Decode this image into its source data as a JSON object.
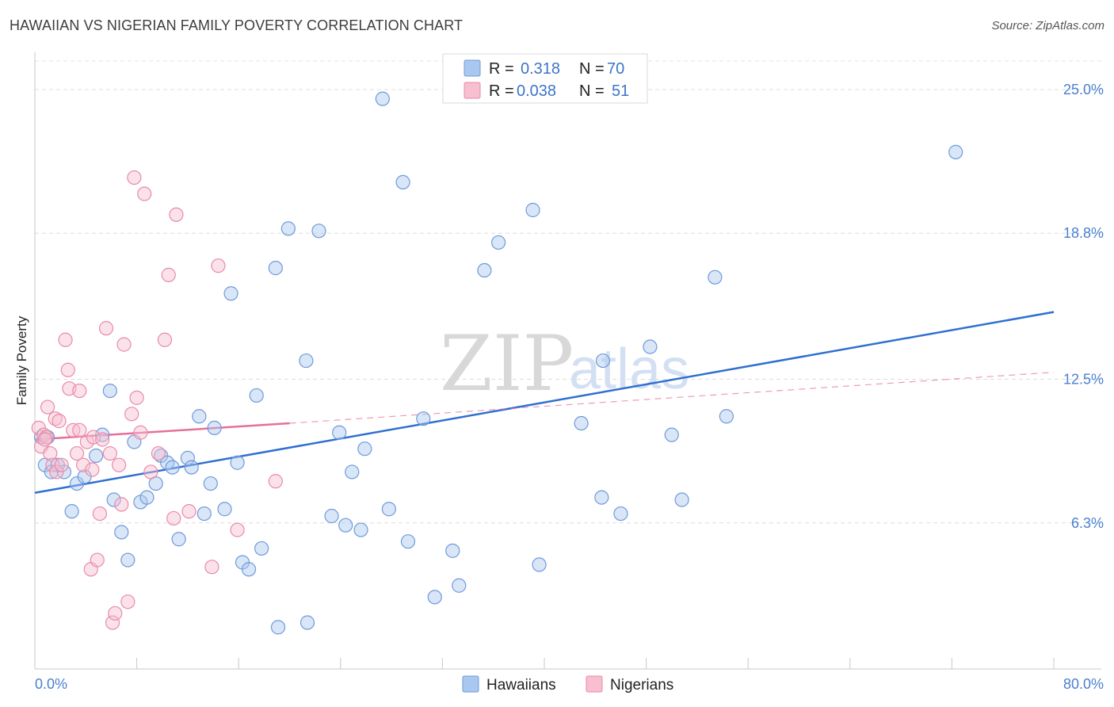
{
  "title": "HAWAIIAN VS NIGERIAN FAMILY POVERTY CORRELATION CHART",
  "source": "Source: ZipAtlas.com",
  "watermark": {
    "zip": "ZIP",
    "atlas": "atlas"
  },
  "legend_top": {
    "rows": [
      {
        "r_label": "R =",
        "r_value": "0.318",
        "n_label": "N =",
        "n_value": "70",
        "color": "#a9c8f0",
        "stroke": "#6f9ad9"
      },
      {
        "r_label": "R =",
        "r_value": "0.038",
        "n_label": "N =",
        "n_value": "51",
        "color": "#f7bfd0",
        "stroke": "#e98aa8"
      }
    ]
  },
  "legend_bottom": [
    {
      "label": "Hawaiians",
      "color": "#a9c8f0",
      "stroke": "#6f9ad9"
    },
    {
      "label": "Nigerians",
      "color": "#f7bfd0",
      "stroke": "#e98aa8"
    }
  ],
  "chart_data": {
    "type": "scatter",
    "ylabel": "Family Poverty",
    "xlim": [
      0,
      80
    ],
    "ylim": [
      0,
      26.4
    ],
    "x_tick_labels": [
      "0.0%",
      "80.0%"
    ],
    "y_ticks": [
      6.3,
      12.5,
      18.8,
      25.0
    ],
    "y_tick_labels": [
      "6.3%",
      "12.5%",
      "18.8%",
      "25.0%"
    ],
    "grid": true,
    "series": [
      {
        "name": "Hawaiians",
        "color": "#6f9ad9",
        "fill": "#a9c8f0",
        "trend": {
          "x": [
            0,
            80
          ],
          "y": [
            7.6,
            15.4
          ],
          "color": "#2f6fd1"
        },
        "points": [
          [
            0.5,
            10.0
          ],
          [
            0.8,
            8.8
          ],
          [
            1.3,
            8.5
          ],
          [
            1.8,
            8.8
          ],
          [
            2.3,
            8.5
          ],
          [
            2.9,
            6.8
          ],
          [
            3.3,
            8.0
          ],
          [
            3.9,
            8.3
          ],
          [
            4.8,
            9.2
          ],
          [
            5.3,
            10.1
          ],
          [
            5.9,
            12.0
          ],
          [
            6.2,
            7.3
          ],
          [
            6.8,
            5.9
          ],
          [
            7.3,
            4.7
          ],
          [
            7.8,
            9.8
          ],
          [
            8.3,
            7.2
          ],
          [
            8.8,
            7.4
          ],
          [
            9.5,
            8.0
          ],
          [
            9.9,
            9.2
          ],
          [
            10.4,
            8.9
          ],
          [
            10.8,
            8.7
          ],
          [
            11.3,
            5.6
          ],
          [
            12.0,
            9.1
          ],
          [
            12.3,
            8.7
          ],
          [
            12.9,
            10.9
          ],
          [
            13.3,
            6.7
          ],
          [
            13.8,
            8.0
          ],
          [
            14.1,
            10.4
          ],
          [
            14.9,
            6.9
          ],
          [
            15.4,
            16.2
          ],
          [
            15.9,
            8.9
          ],
          [
            16.3,
            4.6
          ],
          [
            16.8,
            4.3
          ],
          [
            17.4,
            11.8
          ],
          [
            17.8,
            5.2
          ],
          [
            18.9,
            17.3
          ],
          [
            19.1,
            1.8
          ],
          [
            19.9,
            19.0
          ],
          [
            21.3,
            13.3
          ],
          [
            21.4,
            2.0
          ],
          [
            22.3,
            18.9
          ],
          [
            23.3,
            6.6
          ],
          [
            23.9,
            10.2
          ],
          [
            24.4,
            6.2
          ],
          [
            24.9,
            8.5
          ],
          [
            25.6,
            6.0
          ],
          [
            25.9,
            9.5
          ],
          [
            27.3,
            24.6
          ],
          [
            27.8,
            6.9
          ],
          [
            28.9,
            21.0
          ],
          [
            29.3,
            5.5
          ],
          [
            30.5,
            10.8
          ],
          [
            31.4,
            3.1
          ],
          [
            32.8,
            5.1
          ],
          [
            33.3,
            3.6
          ],
          [
            35.3,
            17.2
          ],
          [
            36.4,
            18.4
          ],
          [
            39.1,
            19.8
          ],
          [
            39.6,
            4.5
          ],
          [
            42.9,
            10.6
          ],
          [
            44.5,
            7.4
          ],
          [
            44.6,
            13.3
          ],
          [
            46.0,
            6.7
          ],
          [
            48.3,
            13.9
          ],
          [
            50.0,
            10.1
          ],
          [
            50.8,
            7.3
          ],
          [
            53.4,
            16.9
          ],
          [
            54.3,
            10.9
          ],
          [
            72.3,
            22.3
          ],
          [
            1.0,
            10.0
          ]
        ]
      },
      {
        "name": "Nigerians",
        "color": "#e98aa8",
        "fill": "#f7bfd0",
        "trend": {
          "x": [
            0,
            20
          ],
          "y": [
            9.9,
            10.6
          ],
          "color": "#e5709a"
        },
        "trend_dashed": {
          "x": [
            20,
            80
          ],
          "y": [
            10.6,
            12.8
          ]
        },
        "points": [
          [
            0.3,
            10.4
          ],
          [
            0.5,
            9.6
          ],
          [
            0.7,
            10.1
          ],
          [
            0.9,
            10.0
          ],
          [
            1.0,
            11.3
          ],
          [
            1.2,
            9.3
          ],
          [
            1.4,
            8.8
          ],
          [
            1.6,
            10.8
          ],
          [
            1.7,
            8.5
          ],
          [
            1.9,
            10.7
          ],
          [
            2.1,
            8.8
          ],
          [
            2.4,
            14.2
          ],
          [
            2.6,
            12.9
          ],
          [
            2.7,
            12.1
          ],
          [
            3.0,
            10.3
          ],
          [
            3.3,
            9.3
          ],
          [
            3.5,
            12.0
          ],
          [
            3.8,
            8.8
          ],
          [
            4.1,
            9.8
          ],
          [
            4.4,
            4.3
          ],
          [
            4.6,
            10.0
          ],
          [
            4.9,
            4.7
          ],
          [
            5.1,
            6.7
          ],
          [
            5.3,
            9.9
          ],
          [
            5.6,
            14.7
          ],
          [
            5.9,
            9.3
          ],
          [
            6.1,
            2.0
          ],
          [
            6.3,
            2.4
          ],
          [
            6.6,
            8.8
          ],
          [
            6.8,
            7.1
          ],
          [
            7.0,
            14.0
          ],
          [
            7.3,
            2.9
          ],
          [
            7.6,
            11.0
          ],
          [
            7.8,
            21.2
          ],
          [
            8.0,
            11.7
          ],
          [
            8.3,
            10.2
          ],
          [
            8.6,
            20.5
          ],
          [
            9.1,
            8.5
          ],
          [
            9.7,
            9.3
          ],
          [
            10.2,
            14.2
          ],
          [
            10.5,
            17.0
          ],
          [
            10.9,
            6.5
          ],
          [
            11.1,
            19.6
          ],
          [
            12.1,
            6.8
          ],
          [
            13.9,
            4.4
          ],
          [
            14.4,
            17.4
          ],
          [
            15.9,
            6.0
          ],
          [
            18.9,
            8.1
          ],
          [
            4.5,
            8.6
          ],
          [
            3.5,
            10.3
          ],
          [
            0.8,
            9.9
          ]
        ]
      }
    ]
  }
}
